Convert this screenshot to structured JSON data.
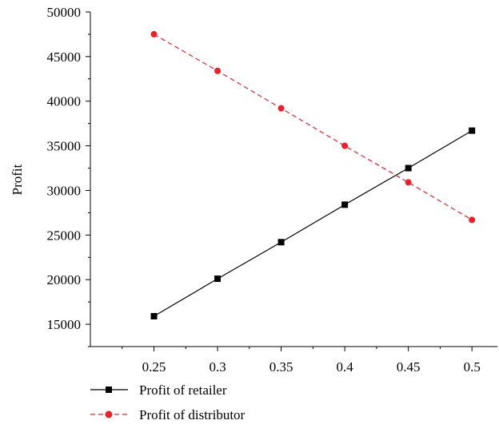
{
  "chart_data": {
    "type": "line",
    "title": "",
    "xlabel": "",
    "ylabel": "Profit",
    "x": [
      0.25,
      0.3,
      0.35,
      0.4,
      0.45,
      0.5
    ],
    "x_tick_labels": [
      "0.25",
      "0.3",
      "0.35",
      "0.4",
      "0.45",
      "0.5"
    ],
    "xlim": [
      0.2,
      0.52
    ],
    "ylim": [
      12500,
      50000
    ],
    "y_ticks": [
      15000,
      20000,
      25000,
      30000,
      35000,
      40000,
      45000,
      50000
    ],
    "y_tick_labels": [
      "15000",
      "20000",
      "25000",
      "30000",
      "35000",
      "40000",
      "45000",
      "50000"
    ],
    "grid": false,
    "legend_position": "bottom-left",
    "series": [
      {
        "name": "Profit of retailer",
        "values": [
          15900,
          20100,
          24200,
          28400,
          32500,
          36700
        ],
        "color": "#000000",
        "line_style": "solid",
        "marker": "square"
      },
      {
        "name": "Profit of distributor",
        "values": [
          47500,
          43400,
          39200,
          35000,
          30900,
          26700
        ],
        "color": "#e8212b",
        "line_style": "dashed",
        "marker": "circle"
      }
    ]
  }
}
